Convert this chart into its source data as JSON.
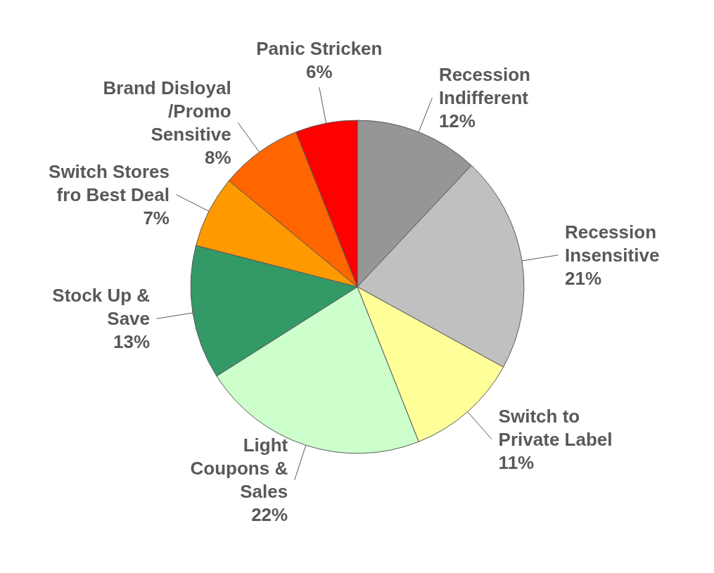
{
  "chart_data": {
    "type": "pie",
    "categories": [
      "Recession\nIndifferent",
      "Recession\nInsensitive",
      "Switch to\nPrivate Label",
      "Light\nCoupons &\nSales",
      "Stock Up &\nSave",
      "Switch Stores\nfro Best Deal",
      "Brand Disloyal\n/Promo\nSensitive",
      "Panic Stricken"
    ],
    "values": [
      12,
      21,
      11,
      22,
      13,
      7,
      8,
      6
    ],
    "colors": [
      "#969696",
      "#c0c0c0",
      "#ffff99",
      "#ccffcc",
      "#339966",
      "#ff9900",
      "#ff6600",
      "#ff0000"
    ],
    "value_labels": [
      "12%",
      "21%",
      "11%",
      "22%",
      "13%",
      "7%",
      "8%",
      "6%"
    ]
  }
}
